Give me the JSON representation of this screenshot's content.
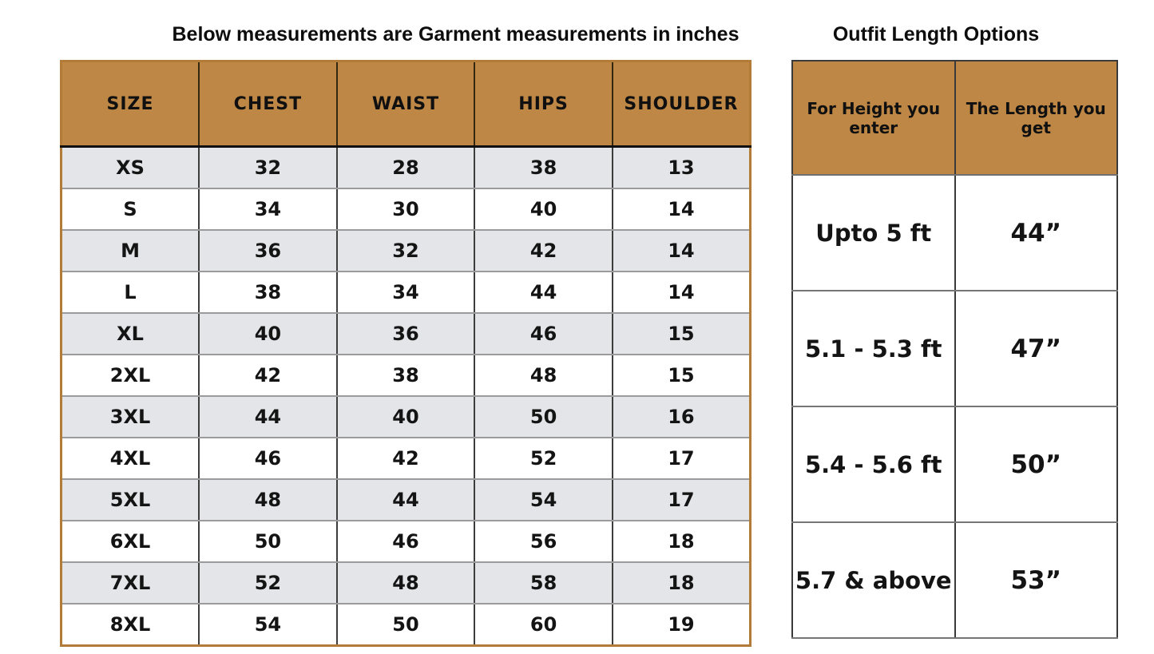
{
  "colors": {
    "header_fill": "#be8745",
    "alt_row_fill": "#e4e5e9",
    "left_table_border": "#b27c38",
    "right_table_border": "#3a3a3a",
    "grid_line_dark": "#3d3d3d",
    "grid_line_light": "#9b9b9b",
    "text": "#141414",
    "background": "#ffffff"
  },
  "chart_data": [
    {
      "type": "table",
      "title": "Below measurements are Garment measurements in inches",
      "columns": [
        "SIZE",
        "CHEST",
        "WAIST",
        "HIPS",
        "SHOULDER"
      ],
      "rows": [
        [
          "XS",
          "32",
          "28",
          "38",
          "13"
        ],
        [
          "S",
          "34",
          "30",
          "40",
          "14"
        ],
        [
          "M",
          "36",
          "32",
          "42",
          "14"
        ],
        [
          "L",
          "38",
          "34",
          "44",
          "14"
        ],
        [
          "XL",
          "40",
          "36",
          "46",
          "15"
        ],
        [
          "2XL",
          "42",
          "38",
          "48",
          "15"
        ],
        [
          "3XL",
          "44",
          "40",
          "50",
          "16"
        ],
        [
          "4XL",
          "46",
          "42",
          "52",
          "17"
        ],
        [
          "5XL",
          "48",
          "44",
          "54",
          "17"
        ],
        [
          "6XL",
          "50",
          "46",
          "56",
          "18"
        ],
        [
          "7XL",
          "52",
          "48",
          "58",
          "18"
        ],
        [
          "8XL",
          "54",
          "50",
          "60",
          "19"
        ]
      ],
      "layout": {
        "zebra_striping": true,
        "units": "inches"
      }
    },
    {
      "type": "table",
      "title": "Outfit Length Options",
      "columns": [
        "For Height you enter",
        "The Length you get"
      ],
      "rows": [
        [
          "Upto 5 ft",
          "44”"
        ],
        [
          "5.1 - 5.3 ft",
          "47”"
        ],
        [
          "5.4 - 5.6 ft",
          "50”"
        ],
        [
          "5.7 & above",
          "53”"
        ]
      ],
      "layout": {
        "zebra_striping": false,
        "units": "inches"
      }
    }
  ]
}
